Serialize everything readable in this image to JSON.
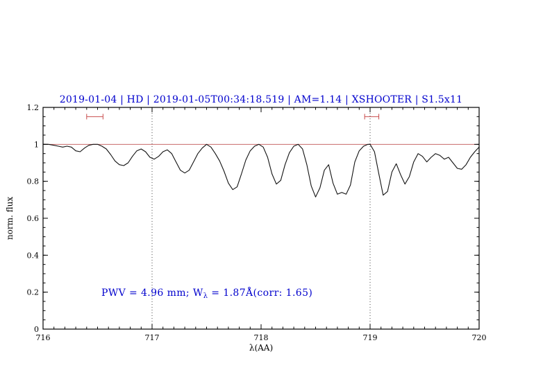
{
  "figure": {
    "annotation": {
      "part1": "PWV = 4.96 mm; W",
      "sub": "λ",
      "part2": " = 1.87Å(corr: 1.65)"
    }
  },
  "colors": {
    "text_blue": "#0000cd",
    "spectrum": "#111111",
    "reference_line": "#c86a6a",
    "marker": "#c84b4b",
    "dotted_line": "#444444",
    "frame": "#000000"
  },
  "chart_data": {
    "type": "line",
    "title": "2019-01-04 | HD | 2019-01-05T00:34:18.519 | AM=1.14 | XSHOOTER | S1.5x11",
    "xlabel": "λ(AA)",
    "ylabel": "norm. flux",
    "xlim": [
      716,
      720
    ],
    "ylim": [
      0,
      1.2
    ],
    "xticks": [
      716,
      717,
      718,
      719,
      720
    ],
    "xtick_labels": [
      "716",
      "717",
      "718",
      "719",
      "720"
    ],
    "yticks": [
      0,
      0.2,
      0.4,
      0.6,
      0.8,
      1,
      1.2
    ],
    "ytick_labels": [
      "0",
      "0.2",
      "0.4",
      "0.6",
      "0.8",
      "1",
      "1.2"
    ],
    "x_minor_step": 0.1,
    "y_minor_step": 0.05,
    "grid": false,
    "legend": "none",
    "reference_line_y": 1.0,
    "dotted_vlines": [
      717,
      719
    ],
    "range_markers": [
      {
        "x1": 716.4,
        "x2": 716.55,
        "y": 1.15
      },
      {
        "x1": 718.95,
        "x2": 719.08,
        "y": 1.15
      }
    ],
    "annotation_text": "PWV = 4.96 mm; Wλ = 1.87Å(corr: 1.65)",
    "series": [
      {
        "name": "normalized telluric spectrum",
        "x": [
          716.0,
          716.05,
          716.1,
          716.14,
          716.18,
          716.22,
          716.26,
          716.3,
          716.34,
          716.38,
          716.42,
          716.46,
          716.5,
          716.54,
          716.58,
          716.62,
          716.66,
          716.7,
          716.74,
          716.78,
          716.82,
          716.86,
          716.9,
          716.94,
          716.98,
          717.02,
          717.06,
          717.1,
          717.14,
          717.18,
          717.22,
          717.26,
          717.3,
          717.34,
          717.38,
          717.42,
          717.46,
          717.5,
          717.54,
          717.58,
          717.62,
          717.66,
          717.7,
          717.74,
          717.78,
          717.82,
          717.86,
          717.9,
          717.94,
          717.98,
          718.02,
          718.06,
          718.1,
          718.14,
          718.18,
          718.22,
          718.26,
          718.3,
          718.34,
          718.38,
          718.42,
          718.46,
          718.5,
          718.54,
          718.58,
          718.62,
          718.66,
          718.7,
          718.74,
          718.78,
          718.82,
          718.86,
          718.9,
          718.94,
          718.98,
          719.0,
          719.04,
          719.08,
          719.12,
          719.16,
          719.2,
          719.24,
          719.28,
          719.32,
          719.36,
          719.4,
          719.44,
          719.48,
          719.52,
          719.56,
          719.6,
          719.64,
          719.68,
          719.72,
          719.76,
          719.8,
          719.84,
          719.88,
          719.92,
          719.96,
          720.0
        ],
        "y": [
          1.0,
          1.0,
          0.995,
          0.99,
          0.985,
          0.99,
          0.985,
          0.965,
          0.96,
          0.98,
          0.995,
          1.0,
          1.0,
          0.99,
          0.975,
          0.945,
          0.91,
          0.89,
          0.885,
          0.9,
          0.935,
          0.965,
          0.975,
          0.96,
          0.93,
          0.92,
          0.935,
          0.96,
          0.97,
          0.95,
          0.905,
          0.86,
          0.845,
          0.86,
          0.905,
          0.95,
          0.98,
          1.0,
          0.985,
          0.95,
          0.91,
          0.855,
          0.79,
          0.755,
          0.77,
          0.84,
          0.915,
          0.965,
          0.99,
          1.0,
          0.985,
          0.93,
          0.84,
          0.785,
          0.805,
          0.89,
          0.955,
          0.99,
          1.0,
          0.975,
          0.89,
          0.775,
          0.715,
          0.765,
          0.86,
          0.89,
          0.79,
          0.73,
          0.74,
          0.73,
          0.78,
          0.905,
          0.965,
          0.99,
          1.0,
          1.0,
          0.96,
          0.84,
          0.725,
          0.745,
          0.85,
          0.895,
          0.835,
          0.785,
          0.825,
          0.905,
          0.95,
          0.935,
          0.905,
          0.93,
          0.95,
          0.94,
          0.92,
          0.93,
          0.9,
          0.87,
          0.865,
          0.89,
          0.93,
          0.96,
          0.985
        ]
      }
    ]
  }
}
